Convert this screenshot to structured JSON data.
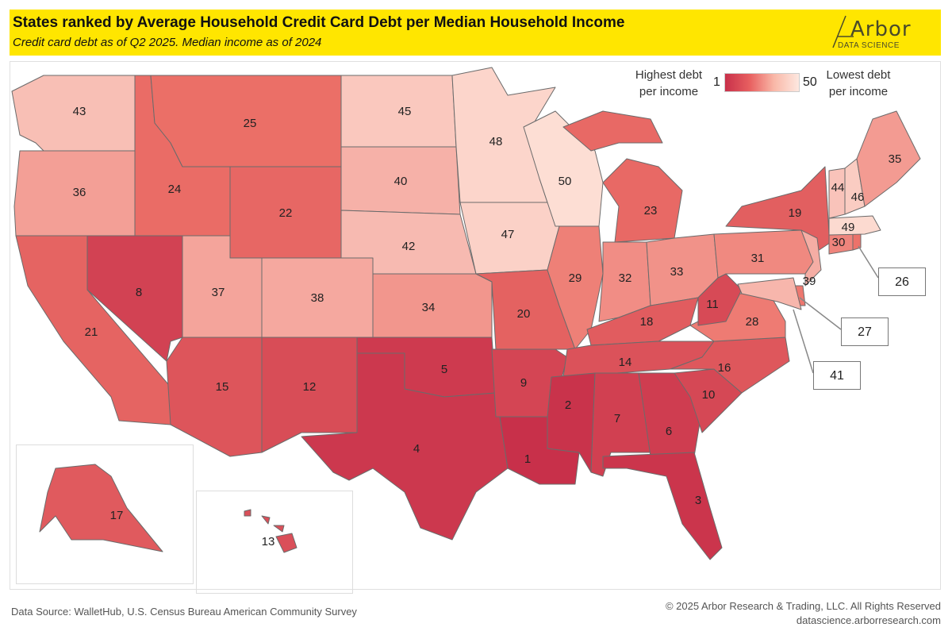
{
  "header": {
    "title": "States ranked by Average Household Credit Card Debt per Median Household Income",
    "subtitle": "Credit card debt as of Q2 2025. Median income as of 2024",
    "logo_main": "Arbor",
    "logo_sub": "DATA SCIENCE"
  },
  "legend": {
    "left_label": "Highest debt per income",
    "right_label": "Lowest debt per income",
    "min": "1",
    "max": "50",
    "color_low_rank": "#c8304a",
    "color_high_rank": "#fde8e0"
  },
  "states": [
    {
      "id": "WA",
      "rank": 43
    },
    {
      "id": "OR",
      "rank": 36
    },
    {
      "id": "CA",
      "rank": 21
    },
    {
      "id": "NV",
      "rank": 8
    },
    {
      "id": "ID",
      "rank": 24
    },
    {
      "id": "MT",
      "rank": 25
    },
    {
      "id": "WY",
      "rank": 22
    },
    {
      "id": "UT",
      "rank": 37
    },
    {
      "id": "AZ",
      "rank": 15
    },
    {
      "id": "CO",
      "rank": 38
    },
    {
      "id": "NM",
      "rank": 12
    },
    {
      "id": "ND",
      "rank": 45
    },
    {
      "id": "SD",
      "rank": 40
    },
    {
      "id": "NE",
      "rank": 42
    },
    {
      "id": "KS",
      "rank": 34
    },
    {
      "id": "OK",
      "rank": 5
    },
    {
      "id": "TX",
      "rank": 4
    },
    {
      "id": "MN",
      "rank": 48
    },
    {
      "id": "IA",
      "rank": 47
    },
    {
      "id": "MO",
      "rank": 20
    },
    {
      "id": "AR",
      "rank": 9
    },
    {
      "id": "LA",
      "rank": 1
    },
    {
      "id": "WI",
      "rank": 50
    },
    {
      "id": "IL",
      "rank": 29
    },
    {
      "id": "MI",
      "rank": 23
    },
    {
      "id": "IN",
      "rank": 32
    },
    {
      "id": "OH",
      "rank": 33
    },
    {
      "id": "KY",
      "rank": 18
    },
    {
      "id": "TN",
      "rank": 14
    },
    {
      "id": "MS",
      "rank": 2
    },
    {
      "id": "AL",
      "rank": 7
    },
    {
      "id": "GA",
      "rank": 6
    },
    {
      "id": "FL",
      "rank": 3
    },
    {
      "id": "SC",
      "rank": 10
    },
    {
      "id": "NC",
      "rank": 16
    },
    {
      "id": "VA",
      "rank": 28
    },
    {
      "id": "WV",
      "rank": 11
    },
    {
      "id": "PA",
      "rank": 31
    },
    {
      "id": "NY",
      "rank": 19
    },
    {
      "id": "NJ",
      "rank": 39
    },
    {
      "id": "DE",
      "rank": 27
    },
    {
      "id": "MD",
      "rank": 41
    },
    {
      "id": "CT",
      "rank": 30
    },
    {
      "id": "RI",
      "rank": 26
    },
    {
      "id": "MA",
      "rank": 49
    },
    {
      "id": "VT",
      "rank": 44
    },
    {
      "id": "NH",
      "rank": 46
    },
    {
      "id": "ME",
      "rank": 35
    },
    {
      "id": "AK",
      "rank": 17
    },
    {
      "id": "HI",
      "rank": 13
    }
  ],
  "callouts": {
    "RI": "26",
    "DE": "27",
    "MD": "41"
  },
  "footer": {
    "source": "Data Source: WalletHub, U.S. Census Bureau American Community Survey",
    "copyright": "© 2025 Arbor Research & Trading, LLC. All Rights Reserved",
    "website": "datascience.arborresearch.com"
  }
}
